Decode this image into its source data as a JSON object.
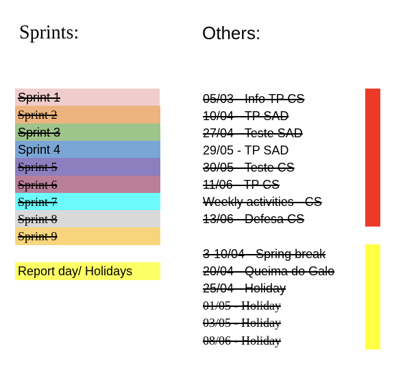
{
  "titles": {
    "sprints": "Sprints:",
    "others": "Others:"
  },
  "sprints": [
    {
      "label": "Sprint 1",
      "color": "#f0cdcc",
      "struck": true
    },
    {
      "label": "Sprint 2",
      "color": "#edb47f",
      "struck": true
    },
    {
      "label": "Sprint 3",
      "color": "#9ec48c",
      "struck": true
    },
    {
      "label": "Sprint 4",
      "color": "#7aa6d6",
      "struck": false
    },
    {
      "label": "Sprint 5",
      "color": "#8c7fbf",
      "struck": true
    },
    {
      "label": "Sprint 6",
      "color": "#b97f98",
      "struck": true
    },
    {
      "label": "Sprint 7",
      "color": "#6cfcfc",
      "struck": true
    },
    {
      "label": "Sprint 8",
      "color": "#d9d9d9",
      "struck": true
    },
    {
      "label": "Sprint 9",
      "color": "#f8d57c",
      "struck": true
    }
  ],
  "report_day": {
    "label": "Report day/ Holidays",
    "color": "#ffff66"
  },
  "evaluations": {
    "bar_color": "#ec3a26",
    "items": [
      {
        "text": "05/03 - Info TP CS",
        "struck": true
      },
      {
        "text": "10/04 - TP SAD",
        "struck": true
      },
      {
        "text": "27/04 - Teste SAD",
        "struck": true
      },
      {
        "text": "29/05 - TP SAD",
        "struck": false
      },
      {
        "text": "30/05 - Teste CS",
        "struck": true
      },
      {
        "text": "11/06 - TP CS",
        "struck": true
      },
      {
        "text": "Weekly activities - CS",
        "struck": true
      },
      {
        "text": "13/06 - Defesa CS",
        "struck": true
      }
    ]
  },
  "holidays": {
    "bar_color": "#ffff44",
    "items": [
      {
        "text": "3-10/04 - Spring break",
        "struck": true
      },
      {
        "text": "20/04 - Queima do Galo",
        "struck": true
      },
      {
        "text": "25/04 - Holiday",
        "struck": true
      },
      {
        "text": "01/05 - Holiday",
        "struck": true
      },
      {
        "text": "03/05 - Holiday",
        "struck": true
      },
      {
        "text": "08/06 - Holiday",
        "struck": true
      }
    ]
  }
}
